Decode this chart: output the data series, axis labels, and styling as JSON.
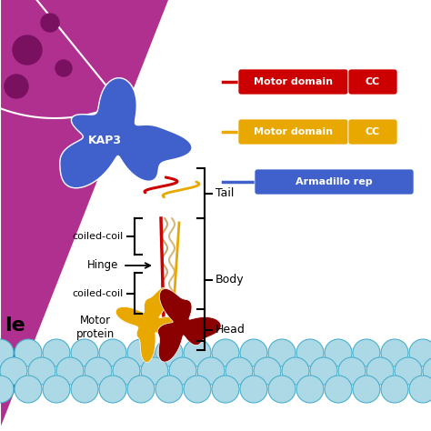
{
  "bg_color": "#ffffff",
  "membrane_color_light": "#add8e6",
  "membrane_color_dark": "#4ab0cc",
  "cell_color": "#b03090",
  "cell_spot_color": "#7a1060",
  "kap3_color": "#4060cc",
  "kap3_label": "KAP3",
  "tail_label": "Tail",
  "body_label": "Body",
  "head_label": "Head",
  "hinge_label": "Hinge",
  "coiled_coil_label": "coiled-coil",
  "motor_protein_label": "Motor\nprotein",
  "red_color": "#cc0000",
  "gold_color": "#e8a800",
  "beige_color": "#c8a060",
  "dark_red_color": "#8b0000",
  "le_label": "le",
  "legend_red_label": "Motor domain",
  "legend_red_cc": "CC",
  "legend_gold_label": "Motor domain",
  "legend_gold_cc": "CC",
  "legend_blue_label": "Armadillo rep",
  "legend_blue_color": "#4060cc"
}
